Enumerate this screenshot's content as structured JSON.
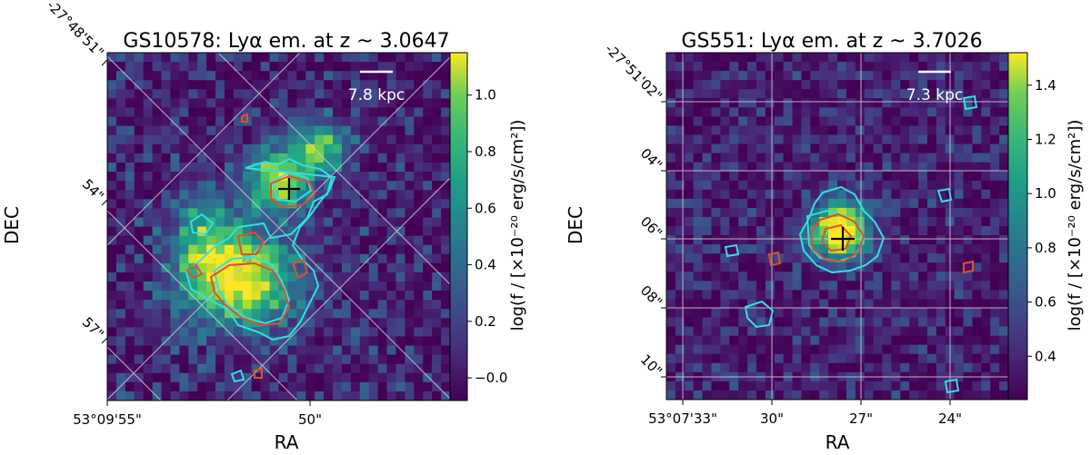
{
  "chart_data": [
    {
      "type": "heatmap",
      "title": "GS10578: Lyα em. at z ~ 3.0647",
      "xlabel": "RA",
      "ylabel": "DEC",
      "x_tick_labels": [
        "53°09'55\"",
        "50\""
      ],
      "y_tick_labels": [
        "-27°48'51\"",
        "54\"",
        "57\""
      ],
      "scale_bar_label": "7.8 kpc",
      "colorbar": {
        "label": "log(f / [×10⁻²⁰ erg/s/cm²])",
        "ticks": [
          -0.0,
          0.2,
          0.4,
          0.6,
          0.8,
          1.0
        ],
        "tick_labels": [
          "−0.0",
          "0.2",
          "0.4",
          "0.6",
          "0.8",
          "1.0"
        ],
        "range": [
          -0.08,
          1.15
        ],
        "colormap": "viridis"
      },
      "grid": true,
      "grid_orientation": "rotated ~45 degrees",
      "contour_colors": [
        "#33e0e0",
        "#e0502c"
      ],
      "marker": "black cross",
      "sources": [
        {
          "x": 0.5,
          "y": 0.63,
          "sx": 0.06,
          "sy": 0.06,
          "amp": 1.05
        },
        {
          "x": 0.39,
          "y": 0.35,
          "sx": 0.11,
          "sy": 0.09,
          "amp": 1.12
        },
        {
          "x": 0.28,
          "y": 0.47,
          "sx": 0.06,
          "sy": 0.1,
          "amp": 0.55
        },
        {
          "x": 0.62,
          "y": 0.73,
          "sx": 0.06,
          "sy": 0.05,
          "amp": 0.75
        }
      ],
      "noise_level": 0.35,
      "seed": 11
    },
    {
      "type": "heatmap",
      "title": "GS551: Lyα em. at z ~ 3.7026",
      "xlabel": "RA",
      "ylabel": "DEC",
      "x_tick_labels": [
        "53°07'33\"",
        "30\"",
        "27\"",
        "24\""
      ],
      "y_tick_labels": [
        "-27°51'02\"",
        "04\"",
        "06\"",
        "08\"",
        "10\""
      ],
      "scale_bar_label": "7.3 kpc",
      "colorbar": {
        "label": "log(f / [×10⁻²⁰ erg/s/cm²])",
        "ticks": [
          0.4,
          0.6,
          0.8,
          1.0,
          1.2,
          1.4
        ],
        "tick_labels": [
          "0.4",
          "0.6",
          "0.8",
          "1.0",
          "1.2",
          "1.4"
        ],
        "range": [
          0.24,
          1.52
        ],
        "colormap": "viridis"
      },
      "grid": true,
      "grid_orientation": "axis-aligned",
      "contour_colors": [
        "#33e0e0",
        "#e0502c"
      ],
      "marker": "black cross",
      "sources": [
        {
          "x": 0.51,
          "y": 0.49,
          "sx": 0.055,
          "sy": 0.055,
          "amp": 1.45
        }
      ],
      "noise_level": 0.3,
      "seed": 7
    }
  ]
}
